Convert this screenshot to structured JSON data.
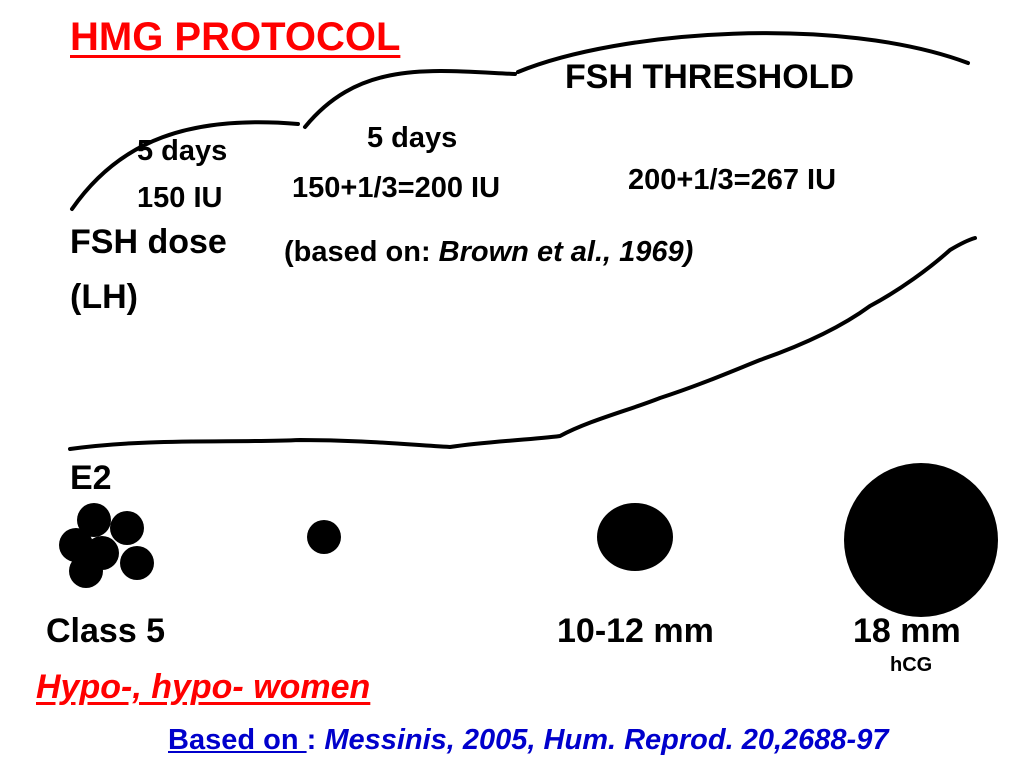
{
  "title": "HMG PROTOCOL",
  "threshold_label": "FSH THRESHOLD",
  "stages": [
    {
      "days": "5 days",
      "dose": "150 IU"
    },
    {
      "days": "5 days",
      "dose": "150+1/3=200 IU"
    },
    {
      "dose": "200+1/3=267 IU"
    }
  ],
  "fsh_dose_label": "FSH dose",
  "lh_label": "(LH)",
  "reference": {
    "prefix": "(based on: ",
    "citation": "Brown et al., 1969)"
  },
  "e2_label": "E2",
  "follicles": {
    "class5": "Class 5",
    "medium": "10-12 mm",
    "large": "18 mm",
    "trigger": "hCG"
  },
  "population": "Hypo-, hypo- women",
  "source": {
    "prefix": "Based on ",
    "sep": ": ",
    "citation": "Messinis, 2005, Hum. Reprod. 20,2688-97"
  },
  "colors": {
    "title": "#ff0000",
    "source": "#0000cc",
    "ink": "#000000"
  }
}
